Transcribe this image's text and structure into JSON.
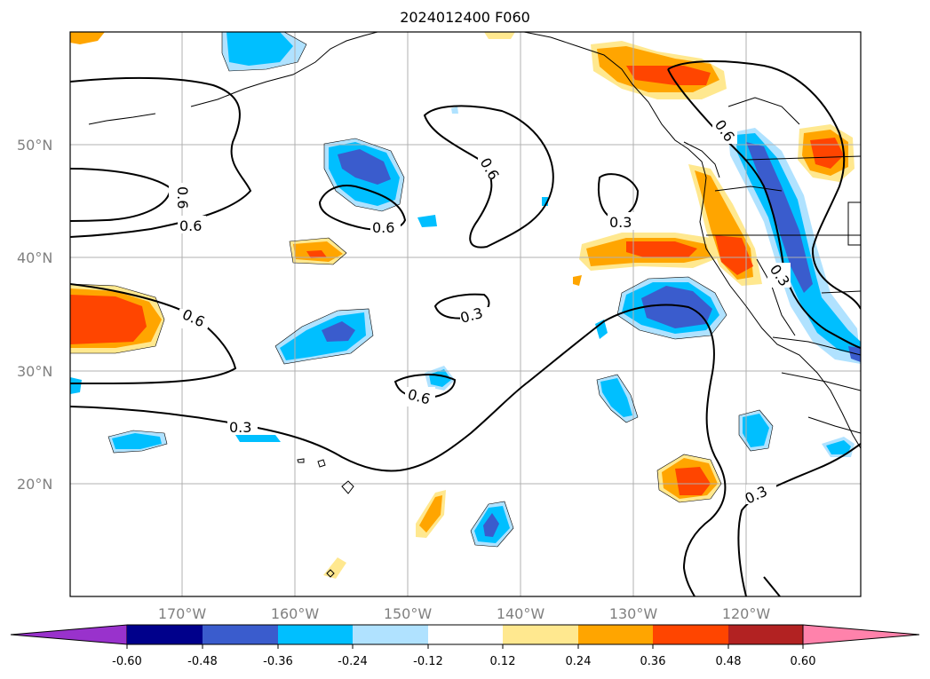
{
  "title": "2024012400 F060",
  "map": {
    "lat_labels": [
      "50°N",
      "40°N",
      "30°N",
      "20°N"
    ],
    "lon_labels": [
      "170°W",
      "160°W",
      "150°W",
      "140°W",
      "130°W",
      "120°W"
    ],
    "contour_labels": [
      "0.6",
      "0.6",
      "0.6",
      "0.6",
      "0.3",
      "0.6",
      "0.3",
      "0.3",
      "0.6",
      "0.3",
      "0.6",
      "0.3"
    ]
  },
  "colorbar": {
    "ticks": [
      "-0.60",
      "-0.48",
      "-0.36",
      "-0.24",
      "-0.12",
      "0.12",
      "0.24",
      "0.36",
      "0.48",
      "0.60"
    ],
    "colors": [
      "#9932cc",
      "#00008b",
      "#3a5ccd",
      "#00bfff",
      "#b0e2ff",
      "#ffffff",
      "#ffe88f",
      "#ffa500",
      "#ff4500",
      "#b22222",
      "#ff82ab"
    ]
  }
}
